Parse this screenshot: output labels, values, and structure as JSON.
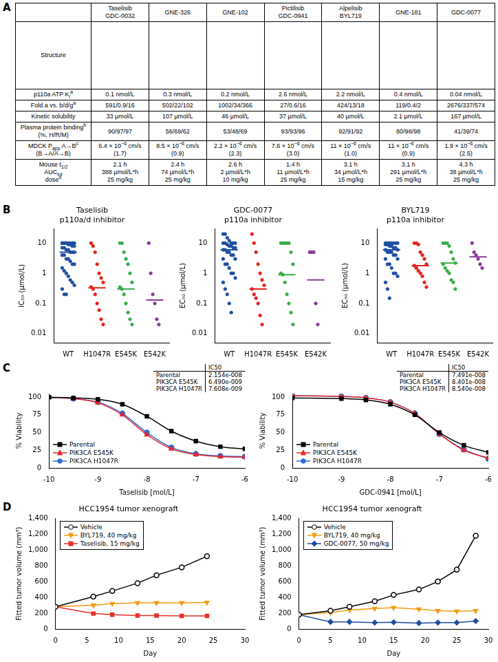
{
  "panel_labels": [
    "A",
    "B",
    "C",
    "D"
  ],
  "table": {
    "header": [
      [
        "Taselisib",
        "GDC-0032"
      ],
      [
        "GNE-326"
      ],
      [
        "GNE-102"
      ],
      [
        "Pictilisib",
        "GDC-0941"
      ],
      [
        "Alpelisib",
        "BYL719"
      ],
      [
        "GNE-181"
      ],
      [
        "GDC-0077"
      ]
    ],
    "rows": [
      {
        "label": [
          "Structure"
        ]
      },
      {
        "label": [
          [
            "p110a ATP K",
            {
              "sub": "i"
            },
            {
              "sup": "a"
            }
          ]
        ],
        "cells": [
          [
            "0.1 nmol/L"
          ],
          [
            "0.3 nmol/L"
          ],
          [
            "0.2 nmol/L"
          ],
          [
            "2.6 nmol/L"
          ],
          [
            "2.2 nmol/L"
          ],
          [
            "0.4 nmol/L"
          ],
          [
            "0.04 nmol/L"
          ]
        ]
      },
      {
        "label": [
          [
            "Fold a vs. b/d/g",
            {
              "sup": "a"
            }
          ]
        ],
        "cells": [
          [
            "591/0.9/16"
          ],
          [
            "502/22/102"
          ],
          [
            "1002/34/366"
          ],
          [
            "27/0.6/16"
          ],
          [
            "424/13/18"
          ],
          [
            "119/0.4/2"
          ],
          [
            "2676/337/574"
          ]
        ]
      },
      {
        "label": [
          "Kinetic solubility"
        ],
        "cells": [
          [
            "33 µmol/L"
          ],
          [
            "107 µmol/L"
          ],
          [
            "46 µmol/L"
          ],
          [
            "37 µmol/L"
          ],
          [
            "40 µmol/L"
          ],
          [
            "2.1 µmol/L"
          ],
          [
            "167 µmol/L"
          ]
        ]
      },
      {
        "label": [
          [
            "Plasma protein binding",
            {
              "sup": "b"
            }
          ],
          "(%, H/R/M)"
        ],
        "cells": [
          [
            "90/97/97"
          ],
          [
            "56/69/62"
          ],
          [
            "53/48/69"
          ],
          [
            "93/93/96"
          ],
          [
            "92/91/92"
          ],
          [
            "80/98/98"
          ],
          [
            "41/39/74"
          ]
        ]
      },
      {
        "label": [
          [
            "MDCK P",
            {
              "sub": "app"
            },
            " A→B",
            {
              "sup": "c"
            }
          ],
          "(B→A/A→B)"
        ],
        "cells": [
          [
            [
              "6.4 × 10",
              {
                "sup": "−6"
              },
              " cm/s"
            ],
            "(1.7)"
          ],
          [
            [
              "8.5 × 10",
              {
                "sup": "−6"
              },
              " cm/s"
            ],
            "(0.9)"
          ],
          [
            [
              "2.2 × 10",
              {
                "sup": "−6"
              },
              " cm/s"
            ],
            "(2.3)"
          ],
          [
            [
              "7.6 × 10",
              {
                "sup": "−6"
              },
              " cm/s"
            ],
            "(3.0)"
          ],
          [
            [
              "11 × 10",
              {
                "sup": "−6"
              },
              " cm/s"
            ],
            "(1.0)"
          ],
          [
            [
              "11 × 10",
              {
                "sup": "−6"
              },
              " cm/s"
            ],
            "(0.9)"
          ],
          [
            [
              "1.9 × 10",
              {
                "sup": "−6"
              },
              " cm/s"
            ],
            "(2.5)"
          ]
        ]
      },
      {
        "label": [
          [
            "Mouse t",
            {
              "sub": "1/2"
            }
          ],
          [
            "AUC",
            {
              "sub": "inf"
            }
          ],
          [
            "dose",
            {
              "sup": "d"
            }
          ]
        ],
        "cells": [
          [
            "2.1 h",
            "388 µmol/L*h",
            "25 mg/kg"
          ],
          [
            "2.4 h",
            "74 µmol/L*h",
            "25 mg/kg"
          ],
          [
            "2.6 h",
            "2 µmol/L*h",
            "10 mg/kg"
          ],
          [
            "1.4 h",
            "11 µmol/L*h",
            "25 mg/kg"
          ],
          [
            "3.1 h",
            "34 µmol/L*h",
            "15 mg/kg"
          ],
          [
            "3.1 h",
            "291 µmol/L*h",
            "25 mg/kg"
          ],
          [
            "4.3 h",
            "38 µmol/L*h",
            "25 mg/kg"
          ]
        ]
      }
    ]
  },
  "chart_data": [
    {
      "type": "strip",
      "title": "Taselisib",
      "subtitle": "p110a/d inhibitor",
      "y_label": "IC₅₀ (µmol/L)",
      "categories": [
        "WT",
        "H1047R",
        "E545K",
        "E542K"
      ],
      "colors": [
        "#1f4fa0",
        "#e2231a",
        "#3aae49",
        "#8a3a9a"
      ],
      "values": [
        [
          10,
          10,
          10,
          10,
          10,
          10,
          10,
          10,
          10,
          10,
          9,
          9,
          8,
          8,
          7,
          7,
          6,
          6,
          5,
          5,
          5,
          4,
          4,
          3,
          3,
          2.5,
          2,
          2,
          1.5,
          1.2,
          1,
          0.8,
          0.6,
          0.5,
          0.4,
          0.3,
          0.2,
          0.2
        ],
        [
          10,
          8,
          5,
          2,
          1,
          0.7,
          0.5,
          0.35,
          0.3,
          0.2,
          0.1,
          0.06,
          0.03,
          0.02
        ],
        [
          10,
          10,
          5,
          3,
          2,
          1,
          0.5,
          0.35,
          0.3,
          0.2,
          0.1,
          0.05,
          0.03,
          0.02
        ],
        [
          10,
          1,
          0.2,
          0.1,
          0.03,
          0.02
        ]
      ],
      "medians": [
        5,
        0.33,
        0.3,
        0.13
      ],
      "log": "y",
      "ylim": [
        0.005,
        30
      ],
      "yticks": [
        0.01,
        0.1,
        1,
        10
      ],
      "grid": false
    },
    {
      "type": "strip",
      "title": "GDC-0077",
      "subtitle": "p110a inhibitor",
      "y_label": "EC₅₀ (µmol/L)",
      "categories": [
        "WT",
        "H1047R",
        "E545K",
        "E542K"
      ],
      "colors": [
        "#1f4fa0",
        "#e2231a",
        "#3aae49",
        "#8a3a9a"
      ],
      "values": [
        [
          20,
          20,
          15,
          12,
          10,
          10,
          10,
          10,
          10,
          9,
          8,
          8,
          7,
          7,
          6,
          6,
          5,
          5,
          4,
          4,
          3,
          3,
          2,
          2,
          1.5,
          1,
          1,
          0.7,
          0.5,
          0.3,
          0.2,
          0.1,
          0.05
        ],
        [
          20,
          10,
          5,
          2,
          1,
          0.6,
          0.4,
          0.3,
          0.2,
          0.15,
          0.1,
          0.04,
          0.02
        ],
        [
          10,
          10,
          10,
          10,
          10,
          5,
          2,
          1,
          0.9,
          0.5,
          0.2,
          0.1,
          0.05,
          0.02
        ],
        [
          5,
          5,
          5,
          0.1,
          0.02
        ]
      ],
      "medians": [
        6,
        0.3,
        0.9,
        0.6
      ],
      "log": "y",
      "ylim": [
        0.005,
        30
      ],
      "yticks": [
        0.01,
        0.1,
        1,
        10
      ],
      "grid": false
    },
    {
      "type": "strip",
      "title": "BYL719",
      "subtitle": "p110a inhibitor",
      "y_label": "EC₅₀ (µmol/L)",
      "categories": [
        "WT",
        "H1047R",
        "E545K",
        "E542K"
      ],
      "colors": [
        "#1f4fa0",
        "#e2231a",
        "#3aae49",
        "#8a3a9a"
      ],
      "values": [
        [
          10,
          10,
          10,
          10,
          10,
          10,
          10,
          9,
          9,
          8,
          8,
          7,
          7,
          6,
          6,
          5,
          5,
          5,
          4,
          4,
          3,
          3,
          2,
          2,
          1.5,
          1,
          1,
          0.8,
          0.5,
          0.3,
          0.15
        ],
        [
          10,
          10,
          9,
          5,
          4,
          3,
          2,
          1.8,
          1.5,
          1.2,
          1,
          0.8,
          0.5,
          0.35
        ],
        [
          10,
          10,
          10,
          8,
          5,
          3,
          2.2,
          2,
          1.5,
          1.2,
          1,
          0.6,
          0.5,
          0.3
        ],
        [
          10,
          5,
          4,
          3,
          2,
          1.5
        ]
      ],
      "medians": [
        6,
        1.8,
        2.2,
        3.5
      ],
      "log": "y",
      "ylim": [
        0.005,
        30
      ],
      "yticks": [
        0.01,
        0.1,
        1,
        10
      ],
      "grid": false
    },
    {
      "type": "line",
      "x_label": "Taselisib [mol/L]",
      "y_label": "% Viability",
      "x": [
        -10,
        -9.5,
        -9,
        -8.5,
        -8,
        -7.5,
        -7,
        -6.5,
        -6
      ],
      "series": [
        {
          "name": "Parental",
          "color": "#000000",
          "marker": "square",
          "line_style": "smooth",
          "values": [
            100,
            99,
            97,
            90,
            73,
            52,
            38,
            30,
            27
          ]
        },
        {
          "name": "PIK3CA E545K",
          "color": "#e8262b",
          "marker": "triangle",
          "line_style": "smooth",
          "values": [
            100,
            98,
            92,
            75,
            47,
            27,
            19,
            16,
            15
          ]
        },
        {
          "name": "PIK3CA H1047R",
          "color": "#2b6fd6",
          "marker": "circle",
          "line_style": "smooth",
          "values": [
            100,
            98,
            93,
            77,
            50,
            29,
            20,
            17,
            16
          ]
        }
      ],
      "xlim": [
        -10,
        -6
      ],
      "xticks": [
        -10,
        -9,
        -8,
        -7,
        -6
      ],
      "ylim": [
        0,
        105
      ],
      "yticks": [
        0,
        25,
        50,
        75,
        100
      ],
      "grid": false,
      "legend": "bottom-left",
      "ic50_table": {
        "header": "IC50",
        "rows": [
          [
            "Parental",
            "2.154e-008"
          ],
          [
            "PIK3CA E545K",
            "6.490e-009"
          ],
          [
            "PIK3CA H1047R",
            "7.608e-009"
          ]
        ]
      }
    },
    {
      "type": "line",
      "x_label": "GDC-0941 [mol/L]",
      "y_label": "% Viability",
      "x": [
        -10,
        -9,
        -8.5,
        -8,
        -7.5,
        -7,
        -6.5,
        -6
      ],
      "series": [
        {
          "name": "Parental",
          "color": "#000000",
          "marker": "square",
          "line_style": "smooth",
          "values": [
            99,
            98,
            96,
            90,
            75,
            50,
            32,
            22
          ]
        },
        {
          "name": "PIK3CA E545K",
          "color": "#e8262b",
          "marker": "triangle",
          "line_style": "smooth",
          "values": [
            102,
            101,
            99,
            93,
            77,
            48,
            25,
            14
          ]
        },
        {
          "name": "PIK3CA H1047R",
          "color": "#2b6fd6",
          "marker": "circle",
          "line_style": "smooth",
          "values": [
            102,
            101,
            99,
            93,
            77,
            48,
            26,
            13
          ]
        }
      ],
      "xlim": [
        -10,
        -6
      ],
      "xticks": [
        -10,
        -9,
        -8,
        -7,
        -6
      ],
      "ylim": [
        0,
        105
      ],
      "yticks": [
        0,
        25,
        50,
        75,
        100
      ],
      "grid": false,
      "legend": "bottom-left",
      "ic50_table": {
        "header": "IC50",
        "rows": [
          [
            "Parental",
            "7.491e-008"
          ],
          [
            "PIK3CA E545K",
            "8.401e-008"
          ],
          [
            "PIK3CA H1047R",
            "8.540e-008"
          ]
        ]
      }
    },
    {
      "type": "line",
      "title": "HCC1954 tumor xenograft",
      "x_label": "Day",
      "y_label": "Fitted tumor volume (mm³)",
      "x": [
        0,
        6,
        9,
        13,
        16,
        20,
        24
      ],
      "series": [
        {
          "name": "Vehicle",
          "color": "#000000",
          "marker": "circle-open",
          "line_style": "solid",
          "values": [
            280,
            410,
            480,
            580,
            680,
            780,
            920
          ]
        },
        {
          "name": "BYL719, 40 mg/kg",
          "color": "#f39c12",
          "marker": "triangle-down",
          "line_style": "solid",
          "values": [
            280,
            300,
            320,
            330,
            330,
            330,
            335
          ]
        },
        {
          "name": "Taselisib, 15 mg/kg",
          "color": "#e8312a",
          "marker": "square",
          "line_style": "solid",
          "values": [
            280,
            195,
            180,
            170,
            170,
            165,
            165
          ]
        }
      ],
      "xlim": [
        0,
        30
      ],
      "xticks": [
        0,
        5,
        10,
        15,
        20,
        25,
        30
      ],
      "ylim": [
        0,
        1400
      ],
      "yticks": [
        0,
        200,
        400,
        600,
        800,
        {
          "value": 1000,
          "label": "1,000"
        },
        {
          "value": 1200,
          "label": "1,200"
        },
        {
          "value": 1400,
          "label": "1,400"
        }
      ],
      "grid": false,
      "legend": "top-left"
    },
    {
      "type": "line",
      "title": "HCC1954 tumor xenograft",
      "x_label": "Day",
      "y_label": "Fitted tumor volume (mm³)",
      "x": [
        0,
        5,
        8,
        12,
        15,
        19,
        22,
        25,
        28
      ],
      "series": [
        {
          "name": "Vehicle",
          "color": "#000000",
          "marker": "circle-open",
          "line_style": "solid",
          "values": [
            180,
            230,
            280,
            350,
            430,
            500,
            600,
            750,
            1180
          ]
        },
        {
          "name": "BYL719, 40 mg/kg",
          "color": "#f39c12",
          "marker": "triangle-down",
          "line_style": "solid",
          "values": [
            180,
            210,
            240,
            260,
            270,
            250,
            230,
            225,
            230
          ]
        },
        {
          "name": "GDC-0077, 50 mg/kg",
          "color": "#1f4e9c",
          "marker": "diamond",
          "line_style": "solid",
          "values": [
            180,
            90,
            90,
            80,
            85,
            75,
            80,
            80,
            100
          ]
        }
      ],
      "xlim": [
        0,
        30
      ],
      "xticks": [
        0,
        5,
        10,
        15,
        20,
        25,
        30
      ],
      "ylim": [
        0,
        1400
      ],
      "yticks": [
        0,
        200,
        400,
        600,
        800,
        {
          "value": 1000,
          "label": "1,000"
        },
        {
          "value": 1200,
          "label": "1,200"
        },
        {
          "value": 1400,
          "label": "1,400"
        }
      ],
      "grid": false,
      "legend": "top-left"
    }
  ]
}
